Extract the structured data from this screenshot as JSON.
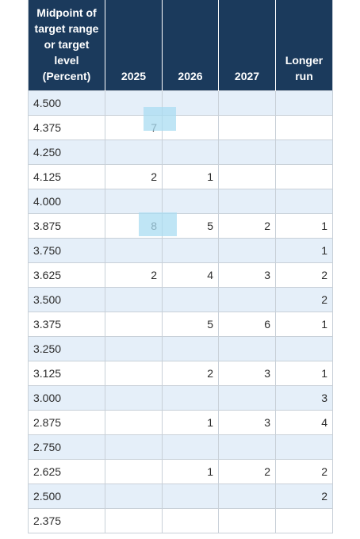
{
  "headers": [
    "Midpoint of target range or target level (Percent)",
    "2025",
    "2026",
    "2027",
    "Longer run"
  ],
  "header_lines": [
    "Midpoint of",
    "target range",
    "or target",
    "level",
    "(Percent)"
  ],
  "rows": [
    {
      "level": "4.500",
      "values": [
        "",
        "",
        "",
        ""
      ]
    },
    {
      "level": "4.375",
      "values": [
        "7",
        "",
        "",
        ""
      ]
    },
    {
      "level": "4.250",
      "values": [
        "",
        "",
        "",
        ""
      ]
    },
    {
      "level": "4.125",
      "values": [
        "2",
        "1",
        "",
        ""
      ]
    },
    {
      "level": "4.000",
      "values": [
        "",
        "",
        "",
        ""
      ]
    },
    {
      "level": "3.875",
      "values": [
        "8",
        "5",
        "2",
        "1"
      ]
    },
    {
      "level": "3.750",
      "values": [
        "",
        "",
        "",
        "1"
      ]
    },
    {
      "level": "3.625",
      "values": [
        "2",
        "4",
        "3",
        "2"
      ]
    },
    {
      "level": "3.500",
      "values": [
        "",
        "",
        "",
        "2"
      ]
    },
    {
      "level": "3.375",
      "values": [
        "",
        "5",
        "6",
        "1"
      ]
    },
    {
      "level": "3.250",
      "values": [
        "",
        "",
        "",
        ""
      ]
    },
    {
      "level": "3.125",
      "values": [
        "",
        "2",
        "3",
        "1"
      ]
    },
    {
      "level": "3.000",
      "values": [
        "",
        "",
        "",
        "3"
      ]
    },
    {
      "level": "2.875",
      "values": [
        "",
        "1",
        "3",
        "4"
      ]
    },
    {
      "level": "2.750",
      "values": [
        "",
        "",
        "",
        ""
      ]
    },
    {
      "level": "2.625",
      "values": [
        "",
        "1",
        "2",
        "2"
      ]
    },
    {
      "level": "2.500",
      "values": [
        "",
        "",
        "",
        "2"
      ]
    },
    {
      "level": "2.375",
      "values": [
        "",
        "",
        "",
        ""
      ]
    }
  ],
  "colors": {
    "header_bg": "#1b3a5c",
    "stripe": "#e5eff9",
    "highlight": "#a9dcf2"
  }
}
